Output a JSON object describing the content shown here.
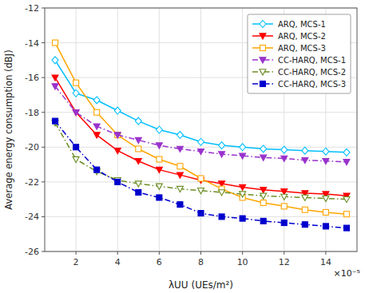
{
  "chart_data": {
    "type": "line",
    "x": [
      1,
      2,
      3,
      4,
      5,
      6,
      7,
      8,
      9,
      10,
      11,
      12,
      13,
      14,
      15
    ],
    "series": [
      {
        "name": "ARQ, MCS-1",
        "color": "#00BFFF",
        "marker": "diamond-open",
        "line_style": "solid",
        "values": [
          -15.0,
          -16.9,
          -17.3,
          -17.9,
          -18.5,
          -19.0,
          -19.3,
          -19.7,
          -19.9,
          -20.0,
          -20.1,
          -20.15,
          -20.2,
          -20.25,
          -20.3
        ]
      },
      {
        "name": "ARQ, MCS-2",
        "color": "#FF0000",
        "marker": "triangle-down",
        "line_style": "solid",
        "values": [
          -16.0,
          -18.0,
          -19.3,
          -20.2,
          -20.8,
          -21.3,
          -21.6,
          -21.9,
          -22.1,
          -22.3,
          -22.45,
          -22.55,
          -22.65,
          -22.7,
          -22.8
        ]
      },
      {
        "name": "ARQ, MCS-3",
        "color": "#FFA500",
        "marker": "square-open",
        "line_style": "solid",
        "values": [
          -14.0,
          -16.3,
          -18.0,
          -19.3,
          -20.1,
          -20.7,
          -21.1,
          -21.8,
          -22.4,
          -22.9,
          -23.2,
          -23.4,
          -23.6,
          -23.75,
          -23.85
        ]
      },
      {
        "name": "CC-HARQ, MCS-1",
        "color": "#9932CC",
        "marker": "triangle-down",
        "line_style": "dashdot",
        "values": [
          -16.5,
          -18.0,
          -18.8,
          -19.3,
          -19.6,
          -19.9,
          -20.1,
          -20.25,
          -20.4,
          -20.5,
          -20.6,
          -20.65,
          -20.75,
          -20.8,
          -20.85
        ]
      },
      {
        "name": "CC-HARQ, MCS-2",
        "color": "#6B8E23",
        "marker": "triangle-down-open",
        "line_style": "dashdot",
        "values": [
          -18.6,
          -20.7,
          -21.4,
          -21.9,
          -22.1,
          -22.25,
          -22.4,
          -22.5,
          -22.6,
          -22.7,
          -22.8,
          -22.85,
          -22.9,
          -22.95,
          -23.0
        ]
      },
      {
        "name": "CC-HARQ, MCS-3",
        "color": "#0000CD",
        "marker": "square",
        "line_style": "dashdot",
        "values": [
          -18.5,
          -20.0,
          -21.3,
          -22.0,
          -22.6,
          -22.9,
          -23.3,
          -23.8,
          -24.0,
          -24.1,
          -24.25,
          -24.35,
          -24.45,
          -24.55,
          -24.65
        ]
      }
    ],
    "x_label": "λUU (UEs/m²)",
    "y_label": "Average energy consumption (dBJ)",
    "annotation": "×10⁻⁵",
    "xlim": [
      0.5,
      15.5
    ],
    "ylim": [
      -26,
      -12
    ],
    "xticks": [
      2,
      4,
      6,
      8,
      10,
      12,
      14
    ],
    "yticks": [
      -26,
      -24,
      -22,
      -20,
      -18,
      -16,
      -14,
      -12
    ],
    "grid": true,
    "legend": "upper right"
  }
}
